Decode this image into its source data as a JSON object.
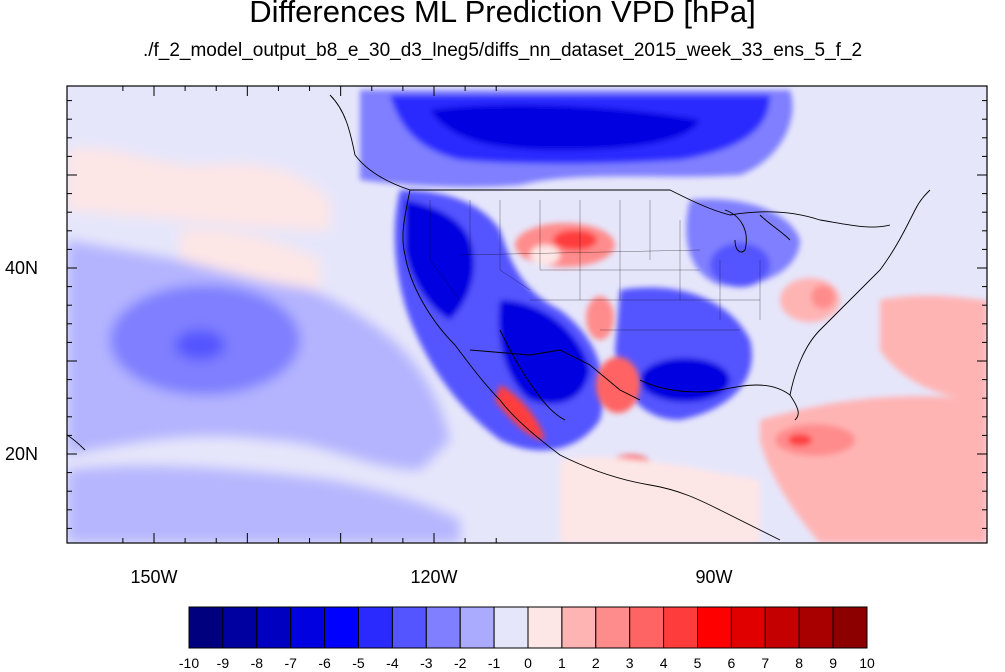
{
  "title": "Differences ML Prediction VPD [hPa]",
  "subtitle": "./f_2_model_output_b8_e_30_d3_lneg5/diffs_nn_dataset_2015_week_33_ens_5_f_2",
  "axes": {
    "lon_labels": [
      "150W",
      "120W",
      "90W"
    ],
    "lat_labels": [
      "40N",
      "20N"
    ]
  },
  "colorbar": {
    "labels": [
      "-10",
      "-9",
      "-8",
      "-7",
      "-6",
      "-5",
      "-4",
      "-3",
      "-2",
      "-1",
      "0",
      "1",
      "2",
      "3",
      "4",
      "5",
      "6",
      "7",
      "8",
      "9",
      "10"
    ],
    "colors": [
      "#00007f",
      "#0000a0",
      "#0000c0",
      "#0000e0",
      "#0000ff",
      "#2a2aff",
      "#5555ff",
      "#7f7fff",
      "#aaaaff",
      "#e6e6fb",
      "#fde6e6",
      "#ffb4b4",
      "#ff8c8c",
      "#ff6464",
      "#ff3c3c",
      "#ff0000",
      "#e00000",
      "#c40000",
      "#a80000",
      "#8c0000"
    ]
  },
  "colors": {
    "background_field": "#e6e6fb",
    "land_outline": "#000000"
  }
}
